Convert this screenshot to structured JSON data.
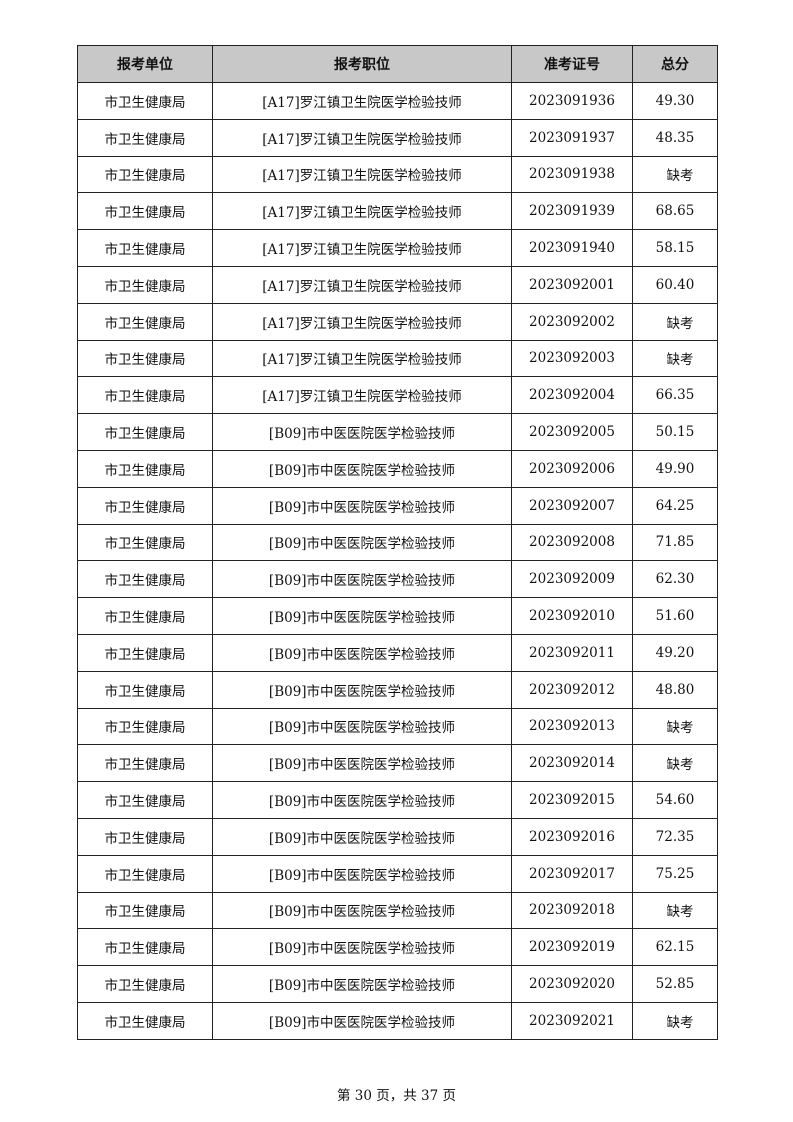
{
  "table": {
    "headers": [
      "报考单位",
      "报考职位",
      "准考证号",
      "总分"
    ],
    "rows": [
      [
        "市卫生健康局",
        "[A17]罗江镇卫生院医学检验技师",
        "2023091936",
        "49.30"
      ],
      [
        "市卫生健康局",
        "[A17]罗江镇卫生院医学检验技师",
        "2023091937",
        "48.35"
      ],
      [
        "市卫生健康局",
        "[A17]罗江镇卫生院医学检验技师",
        "2023091938",
        "缺考"
      ],
      [
        "市卫生健康局",
        "[A17]罗江镇卫生院医学检验技师",
        "2023091939",
        "68.65"
      ],
      [
        "市卫生健康局",
        "[A17]罗江镇卫生院医学检验技师",
        "2023091940",
        "58.15"
      ],
      [
        "市卫生健康局",
        "[A17]罗江镇卫生院医学检验技师",
        "2023092001",
        "60.40"
      ],
      [
        "市卫生健康局",
        "[A17]罗江镇卫生院医学检验技师",
        "2023092002",
        "缺考"
      ],
      [
        "市卫生健康局",
        "[A17]罗江镇卫生院医学检验技师",
        "2023092003",
        "缺考"
      ],
      [
        "市卫生健康局",
        "[A17]罗江镇卫生院医学检验技师",
        "2023092004",
        "66.35"
      ],
      [
        "市卫生健康局",
        "[B09]市中医医院医学检验技师",
        "2023092005",
        "50.15"
      ],
      [
        "市卫生健康局",
        "[B09]市中医医院医学检验技师",
        "2023092006",
        "49.90"
      ],
      [
        "市卫生健康局",
        "[B09]市中医医院医学检验技师",
        "2023092007",
        "64.25"
      ],
      [
        "市卫生健康局",
        "[B09]市中医医院医学检验技师",
        "2023092008",
        "71.85"
      ],
      [
        "市卫生健康局",
        "[B09]市中医医院医学检验技师",
        "2023092009",
        "62.30"
      ],
      [
        "市卫生健康局",
        "[B09]市中医医院医学检验技师",
        "2023092010",
        "51.60"
      ],
      [
        "市卫生健康局",
        "[B09]市中医医院医学检验技师",
        "2023092011",
        "49.20"
      ],
      [
        "市卫生健康局",
        "[B09]市中医医院医学检验技师",
        "2023092012",
        "48.80"
      ],
      [
        "市卫生健康局",
        "[B09]市中医医院医学检验技师",
        "2023092013",
        "缺考"
      ],
      [
        "市卫生健康局",
        "[B09]市中医医院医学检验技师",
        "2023092014",
        "缺考"
      ],
      [
        "市卫生健康局",
        "[B09]市中医医院医学检验技师",
        "2023092015",
        "54.60"
      ],
      [
        "市卫生健康局",
        "[B09]市中医医院医学检验技师",
        "2023092016",
        "72.35"
      ],
      [
        "市卫生健康局",
        "[B09]市中医医院医学检验技师",
        "2023092017",
        "75.25"
      ],
      [
        "市卫生健康局",
        "[B09]市中医医院医学检验技师",
        "2023092018",
        "缺考"
      ],
      [
        "市卫生健康局",
        "[B09]市中医医院医学检验技师",
        "2023092019",
        "62.15"
      ],
      [
        "市卫生健康局",
        "[B09]市中医医院医学检验技师",
        "2023092020",
        "52.85"
      ],
      [
        "市卫生健康局",
        "[B09]市中医医院医学检验技师",
        "2023092021",
        "缺考"
      ]
    ]
  },
  "footer": {
    "page_text": "第 30 页，共 37 页"
  },
  "colors": {
    "header_bg": "#c8c8c8",
    "border": "#222222"
  }
}
